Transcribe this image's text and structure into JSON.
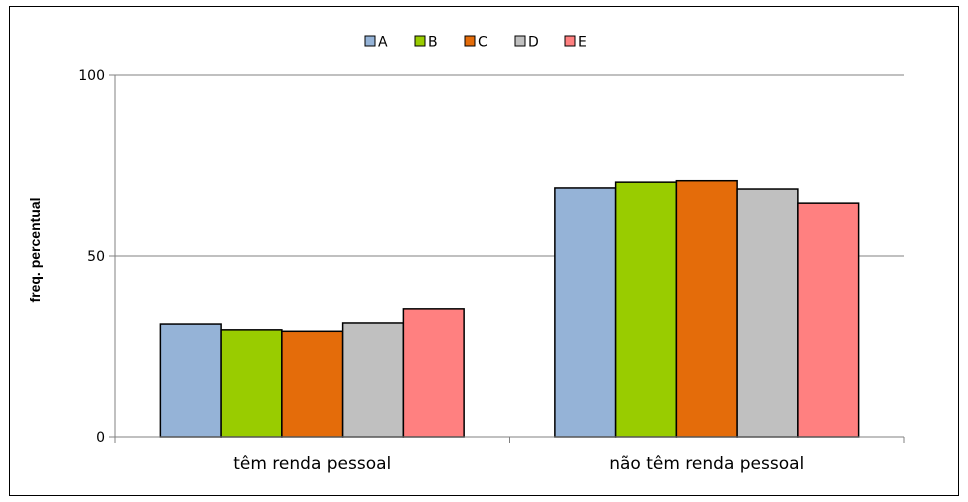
{
  "chart_data": {
    "type": "bar",
    "title": "",
    "xlabel": "",
    "ylabel": "freq. percentual",
    "ylim": [
      0,
      100
    ],
    "yticks": [
      0,
      50,
      100
    ],
    "grid": true,
    "legend_position": "top-center",
    "categories": [
      "têm renda pessoal",
      "não têm renda pessoal"
    ],
    "series": [
      {
        "name": "A",
        "color": "#95b3d7",
        "values": [
          31.2,
          68.8
        ]
      },
      {
        "name": "B",
        "color": "#99cc00",
        "values": [
          29.6,
          70.4
        ]
      },
      {
        "name": "C",
        "color": "#e46c0a",
        "values": [
          29.2,
          70.8
        ]
      },
      {
        "name": "D",
        "color": "#c0c0c0",
        "values": [
          31.5,
          68.5
        ]
      },
      {
        "name": "E",
        "color": "#ff8080",
        "values": [
          35.4,
          64.6
        ]
      }
    ]
  }
}
